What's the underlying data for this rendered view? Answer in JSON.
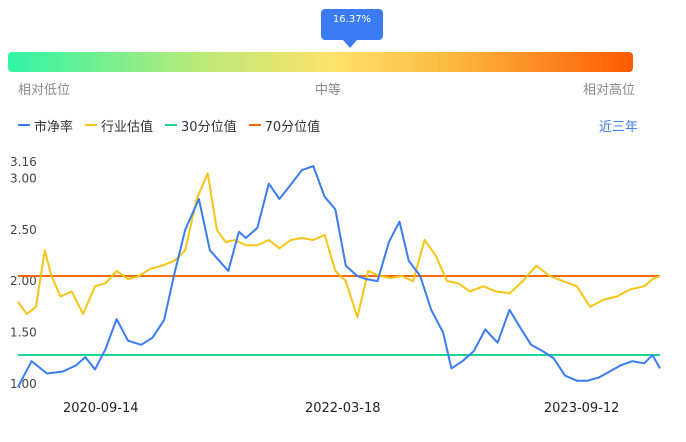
{
  "percentile": {
    "value_label": "16.37%",
    "value": 0.1637,
    "scale_labels": {
      "low": "相对低位",
      "mid": "中等",
      "high": "相对高位"
    },
    "gradient_colors": [
      "#2ff5a6",
      "#b7ea79",
      "#fde26a",
      "#fcb63d",
      "#fd7f1e",
      "#ff5a00"
    ]
  },
  "legend": {
    "items": [
      {
        "label": "市净率",
        "color": "#3b7cf5"
      },
      {
        "label": "行业估值",
        "color": "#f5c518"
      },
      {
        "label": "30分位值",
        "color": "#1fd68e"
      },
      {
        "label": "70分位值",
        "color": "#f26a10"
      }
    ],
    "range_label": "近三年"
  },
  "chart_data": {
    "type": "line",
    "ylim": [
      0.93,
      3.16
    ],
    "y_ticks": [
      "3.16",
      "3.00",
      "2.50",
      "2.00",
      "1.50",
      "1.00"
    ],
    "y_tick_values": [
      3.16,
      3.0,
      2.5,
      2.0,
      1.5,
      1.0
    ],
    "x_tick_labels": [
      "2020-09-14",
      "2022-03-18",
      "2023-09-12"
    ],
    "x_tick_dates": [
      "2020-09-14",
      "2022-03-18",
      "2023-09-12"
    ],
    "x_range": [
      "2020-03-10",
      "2024-03-08"
    ],
    "reference_lines": [
      {
        "name": "30分位值",
        "value": 1.28,
        "color": "#1fd68e"
      },
      {
        "name": "70分位值",
        "value": 2.05,
        "color": "#f26a10"
      }
    ],
    "series": [
      {
        "name": "市净率",
        "color": "#3b7cf5",
        "x": [
          "2020-03-10",
          "2020-04-10",
          "2020-05-15",
          "2020-06-20",
          "2020-07-20",
          "2020-08-10",
          "2020-09-01",
          "2020-09-25",
          "2020-10-20",
          "2020-11-15",
          "2020-12-15",
          "2021-01-10",
          "2021-02-05",
          "2021-03-01",
          "2021-03-25",
          "2021-04-25",
          "2021-05-20",
          "2021-06-10",
          "2021-07-01",
          "2021-07-25",
          "2021-08-10",
          "2021-09-05",
          "2021-10-01",
          "2021-10-25",
          "2021-11-20",
          "2021-12-15",
          "2022-01-10",
          "2022-02-05",
          "2022-03-01",
          "2022-03-25",
          "2022-04-20",
          "2022-05-10",
          "2022-06-05",
          "2022-07-01",
          "2022-07-25",
          "2022-08-15",
          "2022-09-10",
          "2022-10-05",
          "2022-11-01",
          "2022-11-20",
          "2022-12-15",
          "2023-01-10",
          "2023-02-05",
          "2023-03-05",
          "2023-04-01",
          "2023-04-25",
          "2023-05-20",
          "2023-06-15",
          "2023-07-10",
          "2023-08-05",
          "2023-09-01",
          "2023-09-25",
          "2023-10-20",
          "2023-11-15",
          "2023-12-10",
          "2024-01-05",
          "2024-02-01",
          "2024-02-20",
          "2024-03-08"
        ],
        "values": [
          0.97,
          1.22,
          1.1,
          1.12,
          1.18,
          1.26,
          1.14,
          1.34,
          1.63,
          1.42,
          1.38,
          1.45,
          1.62,
          2.08,
          2.5,
          2.8,
          2.3,
          2.2,
          2.1,
          2.48,
          2.42,
          2.52,
          2.95,
          2.8,
          2.94,
          3.08,
          3.12,
          2.82,
          2.7,
          2.15,
          2.05,
          2.02,
          2.0,
          2.38,
          2.58,
          2.2,
          2.05,
          1.72,
          1.5,
          1.15,
          1.22,
          1.32,
          1.53,
          1.4,
          1.72,
          1.55,
          1.38,
          1.32,
          1.25,
          1.08,
          1.03,
          1.03,
          1.06,
          1.12,
          1.18,
          1.22,
          1.2,
          1.28,
          1.15
        ]
      },
      {
        "name": "行业估值",
        "color": "#f5c518",
        "x": [
          "2020-03-10",
          "2020-03-30",
          "2020-04-20",
          "2020-05-10",
          "2020-05-25",
          "2020-06-15",
          "2020-07-10",
          "2020-08-05",
          "2020-09-01",
          "2020-09-25",
          "2020-10-20",
          "2020-11-15",
          "2020-12-10",
          "2021-01-05",
          "2021-02-01",
          "2021-03-01",
          "2021-03-25",
          "2021-04-20",
          "2021-05-15",
          "2021-06-05",
          "2021-06-25",
          "2021-07-15",
          "2021-08-10",
          "2021-09-05",
          "2021-10-01",
          "2021-10-25",
          "2021-11-20",
          "2021-12-15",
          "2022-01-10",
          "2022-02-05",
          "2022-03-01",
          "2022-03-25",
          "2022-04-20",
          "2022-05-15",
          "2022-06-10",
          "2022-07-05",
          "2022-07-30",
          "2022-08-25",
          "2022-09-20",
          "2022-10-15",
          "2022-11-10",
          "2022-12-05",
          "2023-01-01",
          "2023-02-01",
          "2023-03-01",
          "2023-04-01",
          "2023-05-01",
          "2023-06-01",
          "2023-07-01",
          "2023-08-01",
          "2023-09-01",
          "2023-10-01",
          "2023-11-01",
          "2023-12-01",
          "2024-01-01",
          "2024-02-01",
          "2024-02-20",
          "2024-03-08"
        ],
        "values": [
          1.8,
          1.68,
          1.75,
          2.3,
          2.05,
          1.85,
          1.9,
          1.68,
          1.95,
          1.98,
          2.1,
          2.02,
          2.05,
          2.12,
          2.15,
          2.2,
          2.3,
          2.8,
          3.05,
          2.5,
          2.38,
          2.4,
          2.35,
          2.35,
          2.4,
          2.32,
          2.4,
          2.42,
          2.4,
          2.45,
          2.1,
          2.0,
          1.65,
          2.1,
          2.05,
          2.03,
          2.05,
          2.0,
          2.4,
          2.25,
          2.0,
          1.98,
          1.9,
          1.95,
          1.9,
          1.88,
          2.0,
          2.15,
          2.05,
          2.0,
          1.95,
          1.75,
          1.82,
          1.85,
          1.92,
          1.95,
          2.02,
          2.05
        ]
      }
    ]
  }
}
